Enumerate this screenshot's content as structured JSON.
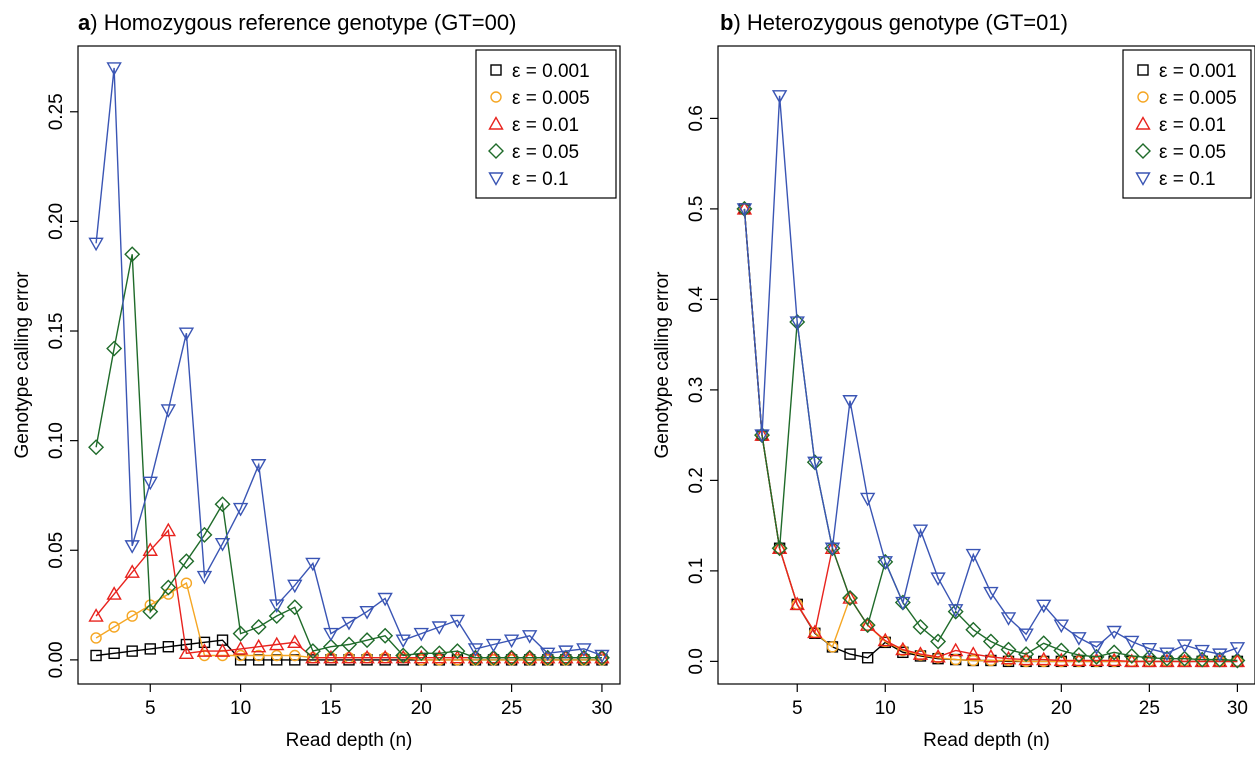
{
  "chart_data": [
    {
      "type": "line",
      "panel_letter": "a",
      "title": ") Homozygous reference genotype (GT=00)",
      "xlabel": "Read depth (n)",
      "ylabel": "Genotype calling error",
      "xlim": [
        1,
        31
      ],
      "ylim": [
        -0.011,
        0.28
      ],
      "xticks": [
        5,
        10,
        15,
        20,
        25,
        30
      ],
      "yticks": [
        0.0,
        0.05,
        0.1,
        0.15,
        0.2,
        0.25
      ],
      "ytick_labels": [
        "0.00",
        "0.05",
        "0.10",
        "0.15",
        "0.20",
        "0.25"
      ],
      "legend_position": "top-right",
      "x": [
        2,
        3,
        4,
        5,
        6,
        7,
        8,
        9,
        10,
        11,
        12,
        13,
        14,
        15,
        16,
        17,
        18,
        19,
        20,
        21,
        22,
        23,
        24,
        25,
        26,
        27,
        28,
        29,
        30
      ],
      "series": [
        {
          "name": "ε = 0.001",
          "color": "#000000",
          "marker": "square",
          "values": [
            0.002,
            0.003,
            0.004,
            0.005,
            0.006,
            0.007,
            0.008,
            0.009,
            0,
            0,
            0,
            0,
            0,
            0,
            0,
            0,
            0,
            0,
            0,
            0,
            0,
            0,
            0,
            0,
            0,
            0,
            0,
            0,
            0
          ]
        },
        {
          "name": "ε = 0.005",
          "color": "#f5a623",
          "marker": "circle",
          "values": [
            0.01,
            0.015,
            0.02,
            0.025,
            0.03,
            0.035,
            0.002,
            0.002,
            0.002,
            0.002,
            0.002,
            0.002,
            0.001,
            0.001,
            0.001,
            0.001,
            0.001,
            0.001,
            0,
            0,
            0,
            0,
            0,
            0,
            0,
            0,
            0,
            0,
            0
          ]
        },
        {
          "name": "ε = 0.01",
          "color": "#e8231e",
          "marker": "triangle-up",
          "values": [
            0.02,
            0.03,
            0.04,
            0.05,
            0.059,
            0.003,
            0.004,
            0.004,
            0.005,
            0.006,
            0.007,
            0.008,
            0.001,
            0.001,
            0.001,
            0.001,
            0.001,
            0.001,
            0.001,
            0.001,
            0.001,
            0.001,
            0.001,
            0.001,
            0.001,
            0.001,
            0.001,
            0.001,
            0.001
          ]
        },
        {
          "name": "ε = 0.05",
          "color": "#1f6b2a",
          "marker": "diamond",
          "values": [
            0.097,
            0.142,
            0.185,
            0.022,
            0.033,
            0.045,
            0.057,
            0.071,
            0.012,
            0.015,
            0.02,
            0.024,
            0.004,
            0.006,
            0.007,
            0.009,
            0.011,
            0.002,
            0.003,
            0.003,
            0.004,
            0.001,
            0.001,
            0.001,
            0.001,
            0.001,
            0.001,
            0.001,
            0.001
          ]
        },
        {
          "name": "ε = 0.1",
          "color": "#3a55b4",
          "marker": "triangle-down",
          "values": [
            0.19,
            0.27,
            0.052,
            0.081,
            0.114,
            0.149,
            0.038,
            0.053,
            0.069,
            0.089,
            0.025,
            0.034,
            0.044,
            0.012,
            0.017,
            0.022,
            0.028,
            0.009,
            0.012,
            0.015,
            0.018,
            0.005,
            0.007,
            0.009,
            0.011,
            0.003,
            0.004,
            0.005,
            0.002
          ]
        }
      ]
    },
    {
      "type": "line",
      "panel_letter": "b",
      "title": ") Heterozygous genotype (GT=01)",
      "xlabel": "Read depth (n)",
      "ylabel": "Genotype calling error",
      "xlim": [
        0.5,
        31
      ],
      "ylim": [
        -0.025,
        0.68
      ],
      "xticks": [
        5,
        10,
        15,
        20,
        25,
        30
      ],
      "yticks": [
        0.0,
        0.1,
        0.2,
        0.3,
        0.4,
        0.5,
        0.6
      ],
      "ytick_labels": [
        "0.0",
        "0.1",
        "0.2",
        "0.3",
        "0.4",
        "0.5",
        "0.6"
      ],
      "legend_position": "top-right",
      "x": [
        2,
        3,
        4,
        5,
        6,
        7,
        8,
        9,
        10,
        11,
        12,
        13,
        14,
        15,
        16,
        17,
        18,
        19,
        20,
        21,
        22,
        23,
        24,
        25,
        26,
        27,
        28,
        29,
        30
      ],
      "series": [
        {
          "name": "ε = 0.001",
          "color": "#000000",
          "marker": "square",
          "values": [
            0.5,
            0.25,
            0.125,
            0.063,
            0.031,
            0.016,
            0.008,
            0.004,
            0.021,
            0.01,
            0.006,
            0.003,
            0.002,
            0.001,
            0.001,
            0,
            0,
            0,
            0,
            0,
            0,
            0,
            0,
            0,
            0,
            0,
            0,
            0,
            0
          ]
        },
        {
          "name": "ε = 0.005",
          "color": "#f5a623",
          "marker": "circle",
          "values": [
            0.5,
            0.25,
            0.125,
            0.063,
            0.032,
            0.016,
            0.07,
            0.04,
            0.022,
            0.012,
            0.007,
            0.004,
            0.002,
            0.001,
            0.001,
            0.001,
            0,
            0,
            0,
            0,
            0,
            0,
            0,
            0,
            0,
            0,
            0,
            0,
            0
          ]
        },
        {
          "name": "ε = 0.01",
          "color": "#e8231e",
          "marker": "triangle-up",
          "values": [
            0.5,
            0.25,
            0.125,
            0.063,
            0.032,
            0.125,
            0.07,
            0.04,
            0.023,
            0.013,
            0.008,
            0.005,
            0.012,
            0.008,
            0.005,
            0.003,
            0.002,
            0.002,
            0.001,
            0.001,
            0.001,
            0.001,
            0,
            0,
            0,
            0,
            0,
            0,
            0
          ]
        },
        {
          "name": "ε = 0.05",
          "color": "#1f6b2a",
          "marker": "diamond",
          "values": [
            0.5,
            0.25,
            0.125,
            0.375,
            0.22,
            0.125,
            0.07,
            0.04,
            0.11,
            0.065,
            0.038,
            0.022,
            0.055,
            0.035,
            0.022,
            0.013,
            0.008,
            0.02,
            0.012,
            0.007,
            0.005,
            0.01,
            0.006,
            0.004,
            0.003,
            0.003,
            0.002,
            0.002,
            0.001
          ]
        },
        {
          "name": "ε = 0.1",
          "color": "#3a55b4",
          "marker": "triangle-down",
          "values": [
            0.5,
            0.25,
            0.625,
            0.375,
            0.22,
            0.125,
            0.288,
            0.18,
            0.11,
            0.065,
            0.145,
            0.092,
            0.057,
            0.118,
            0.076,
            0.048,
            0.03,
            0.062,
            0.04,
            0.026,
            0.016,
            0.033,
            0.022,
            0.014,
            0.009,
            0.018,
            0.012,
            0.008,
            0.015
          ]
        }
      ]
    }
  ]
}
